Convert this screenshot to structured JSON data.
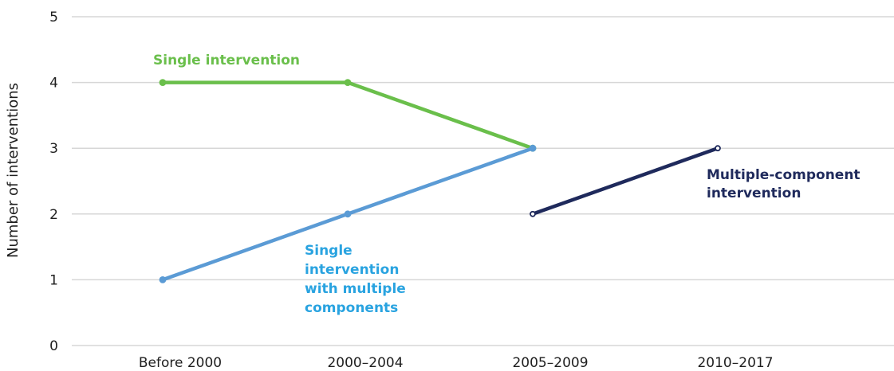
{
  "chart_data": {
    "type": "line",
    "categories": [
      "Before 2000",
      "2000–2004",
      "2005–2009",
      "2010–2017"
    ],
    "ylabel": "Number of interventions",
    "ylim": [
      0,
      5
    ],
    "yticks": [
      "0",
      "1",
      "2",
      "3",
      "4",
      "5"
    ],
    "grid": true,
    "series": [
      {
        "name": "Single intervention",
        "label_lines": [
          "Single intervention"
        ],
        "color": "#6abf4b",
        "values": [
          4,
          4,
          3,
          null
        ]
      },
      {
        "name": "Single intervention with multiple components",
        "label_lines": [
          "Single",
          "intervention",
          "with multiple",
          "components"
        ],
        "color": "#5b9bd5",
        "label_color": "#29a3e0",
        "values": [
          1,
          2,
          3,
          null
        ]
      },
      {
        "name": "Multiple-component intervention",
        "label_lines": [
          "Multiple-component",
          "intervention"
        ],
        "color": "#1f2a5c",
        "values": [
          null,
          null,
          2,
          3
        ]
      }
    ]
  }
}
